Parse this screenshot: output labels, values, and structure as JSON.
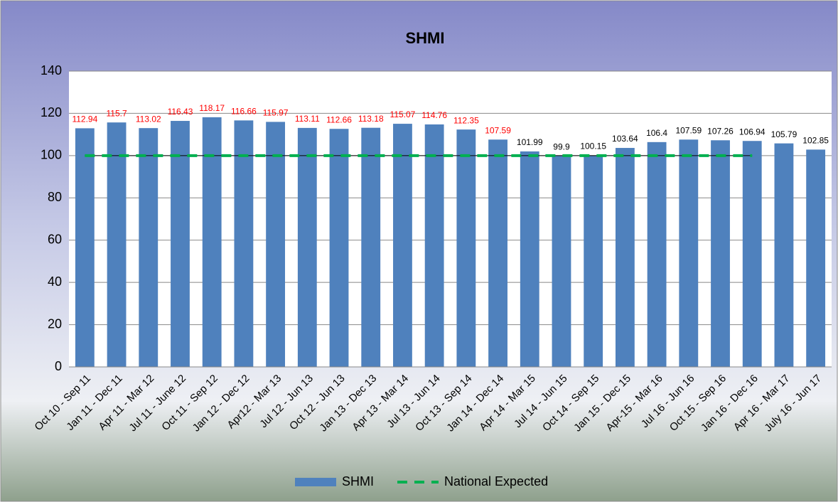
{
  "chart_data": {
    "type": "bar",
    "title": "SHMI",
    "categories": [
      "Oct 10 - Sep 11",
      "Jan 11 - Dec 11",
      "Apr 11 - Mar 12",
      "Jul 11 - June 12",
      "Oct 11 - Sep 12",
      "Jan 12 - Dec 12",
      "Apr12 - Mar 13",
      "Jul 12 - Jun 13",
      "Oct 12 - Jun 13",
      "Jan 13 - Dec 13",
      "Apr 13 - Mar 14",
      "Jul 13 - Jun 14",
      "Oct 13 - Sep 14",
      "Jan 14 - Dec 14",
      "Apr 14 - Mar 15",
      "Jul 14 - Jun 15",
      "Oct 14 - Sep 15",
      "Jan 15 - Dec 15",
      "Apr-15 - Mar 16",
      "Jul 16 - Jun 16",
      "Oct 15 - Sep 16",
      "Jan 16 - Dec 16",
      "Apr 16 - Mar 17",
      "July 16 - Jun 17"
    ],
    "series": [
      {
        "name": "SHMI",
        "type": "bar",
        "color": "#4f81bd",
        "values": [
          112.94,
          115.7,
          113.02,
          116.43,
          118.17,
          116.66,
          115.97,
          113.11,
          112.66,
          113.18,
          115.07,
          114.76,
          112.35,
          107.59,
          101.99,
          99.9,
          100.15,
          103.64,
          106.4,
          107.59,
          107.26,
          106.94,
          105.79,
          102.85
        ],
        "label_colors": [
          "#ff0000",
          "#ff0000",
          "#ff0000",
          "#ff0000",
          "#ff0000",
          "#ff0000",
          "#ff0000",
          "#ff0000",
          "#ff0000",
          "#ff0000",
          "#ff0000",
          "#ff0000",
          "#ff0000",
          "#ff0000",
          "#000000",
          "#000000",
          "#000000",
          "#000000",
          "#000000",
          "#000000",
          "#000000",
          "#000000",
          "#000000",
          "#000000"
        ]
      },
      {
        "name": "National Expected",
        "type": "line",
        "color": "#00b050",
        "dashed": true,
        "values": [
          100,
          100,
          100,
          100,
          100,
          100,
          100,
          100,
          100,
          100,
          100,
          100,
          100,
          100,
          100,
          100,
          100,
          100,
          100,
          100,
          100,
          100,
          null,
          null
        ]
      }
    ],
    "ylim": [
      0,
      140
    ],
    "yticks": [
      0,
      20,
      40,
      60,
      80,
      100,
      120,
      140
    ],
    "grid": true,
    "legend": "bottom"
  }
}
